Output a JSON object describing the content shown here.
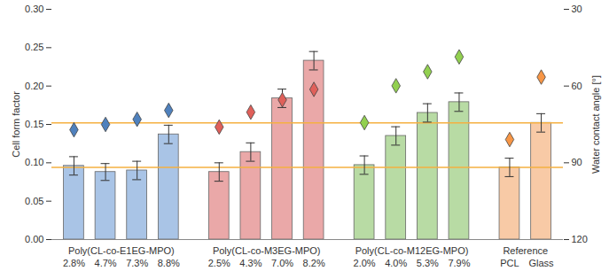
{
  "chart_data": {
    "type": "bar",
    "ylabel": "Cell form factor",
    "y2label": "Water contact angle [°]",
    "ylim": [
      0,
      0.3
    ],
    "yticks": [
      {
        "value": 0,
        "label": "0.00"
      },
      {
        "value": 0.05,
        "label": "0.05"
      },
      {
        "value": 0.1,
        "label": "0.10"
      },
      {
        "value": 0.15,
        "label": "0.15"
      },
      {
        "value": 0.2,
        "label": "0.20"
      },
      {
        "value": 0.25,
        "label": "0.25"
      },
      {
        "value": 0.3,
        "label": "0.30"
      }
    ],
    "y2lim": [
      120,
      30
    ],
    "y2ticks": [
      30,
      60,
      90,
      120
    ],
    "marker": "diamond",
    "reference_lines": [
      0.152,
      0.094
    ],
    "groups": [
      {
        "name": "Poly(CL-co-E1EG-MPO)",
        "categories": [
          "2.8%",
          "4.7%",
          "7.3%",
          "8.8%"
        ],
        "values": [
          0.096,
          0.088,
          0.09,
          0.137
        ],
        "errors": [
          0.012,
          0.011,
          0.012,
          0.012
        ],
        "contact_angles": [
          77.1,
          75.0,
          73.0,
          69.5
        ],
        "color": "#a9c4e6",
        "marker_color": "#4f81bd"
      },
      {
        "name": "Poly(CL-co-M3EG-MPO)",
        "categories": [
          "2.5%",
          "4.3%",
          "7.0%",
          "8.2%"
        ],
        "values": [
          0.088,
          0.114,
          0.184,
          0.233
        ],
        "errors": [
          0.012,
          0.012,
          0.012,
          0.012
        ],
        "contact_angles": [
          76.0,
          70.2,
          65.4,
          61.3
        ],
        "color": "#eaa8a8",
        "marker_color": "#e0605a"
      },
      {
        "name": "Poly(CL-co-M12EG-MPO)",
        "categories": [
          "2.0%",
          "4.0%",
          "5.3%",
          "7.9%"
        ],
        "values": [
          0.097,
          0.135,
          0.165,
          0.179
        ],
        "errors": [
          0.012,
          0.012,
          0.012,
          0.012
        ],
        "contact_angles": [
          74.3,
          59.9,
          54.4,
          48.6
        ],
        "color": "#b8dba4",
        "marker_color": "#92d050"
      },
      {
        "name": "Reference",
        "categories": [
          "PCL",
          "Glass"
        ],
        "values": [
          0.094,
          0.152
        ],
        "errors": [
          0.012,
          0.012
        ],
        "contact_angles": [
          80.9,
          56.5
        ],
        "color": "#f8caa6",
        "marker_color": "#f79646"
      }
    ]
  }
}
